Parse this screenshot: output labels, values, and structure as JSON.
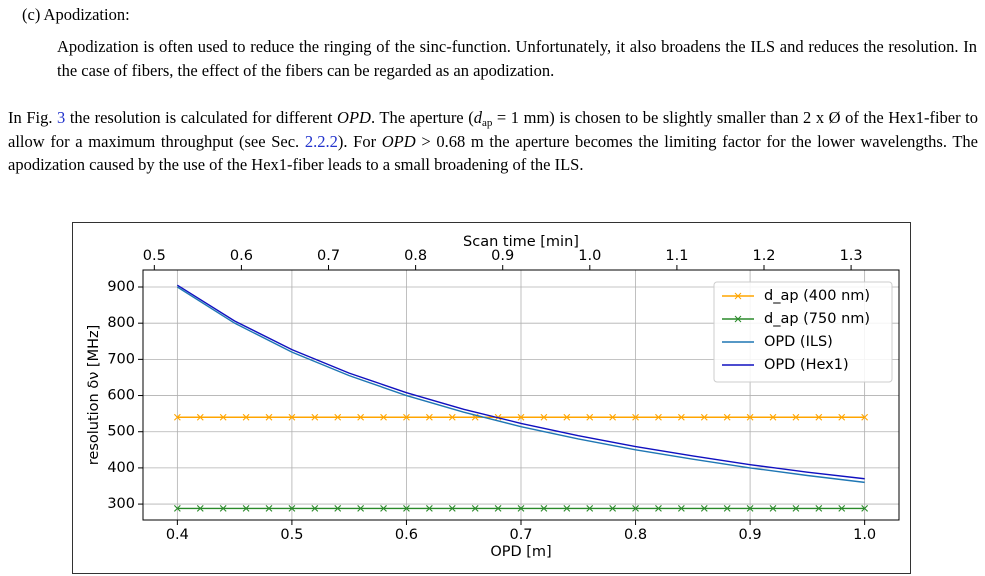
{
  "heading": "(c) Apodization:",
  "paragraphs": [
    {
      "parts": [
        "Apodization is often used to reduce the ringing of the sinc-function. Unfortunately, it also broadens the ILS and reduces the resolution. In the case of fibers, the effect of the fibers can be regarded as an apodization."
      ]
    },
    {
      "parts": [
        "In Fig. ",
        "3",
        " the resolution is calculated for different ",
        "OPD",
        ". The aperture (",
        "d",
        "ap",
        " = 1 mm) is chosen to be slightly smaller than 2 x Ø of the Hex1-fiber to allow for a maximum throughput (see Sec. ",
        "2.2.2",
        "). For ",
        "OPD",
        " > 0.68 m the aperture becomes the limiting factor for the lower wavelengths. The apodization caused by the use of the Hex1-fiber leads to a small broadening of the ILS."
      ]
    }
  ],
  "chart_data": {
    "type": "line",
    "x_label": "OPD [m]",
    "y_label": "resolution δν [MHz]",
    "x2_label": "Scan time [min]",
    "xlim": [
      0.37,
      1.03
    ],
    "xticks": [
      0.4,
      0.5,
      0.6,
      0.7,
      0.8,
      0.9,
      {
        "value": 1.0,
        "label": "1.0"
      }
    ],
    "x2lim": [
      0.487,
      1.355
    ],
    "x2ticks": [
      0.5,
      0.6,
      0.7,
      0.8,
      0.9,
      {
        "value": 1.0,
        "label": "1.0"
      },
      1.1,
      1.2,
      1.3
    ],
    "ylim": [
      256,
      947
    ],
    "yticks": [
      300,
      400,
      500,
      600,
      700,
      800,
      900
    ],
    "grid": true,
    "legend": "upper right",
    "series": [
      {
        "name": "d_ap (400 nm)",
        "color": "#ffa500",
        "marker": "x",
        "x": [
          0.4,
          0.42,
          0.44,
          0.46,
          0.48,
          0.5,
          0.52,
          0.54,
          0.56,
          0.58,
          0.6,
          0.62,
          0.64,
          0.66,
          0.68,
          0.7,
          0.72,
          0.74,
          0.76,
          0.78,
          0.8,
          0.82,
          0.84,
          0.86,
          0.88,
          0.9,
          0.92,
          0.94,
          0.96,
          0.98,
          1.0
        ],
        "values": [
          540,
          540,
          540,
          540,
          540,
          540,
          540,
          540,
          540,
          540,
          540,
          540,
          540,
          540,
          540,
          540,
          540,
          540,
          540,
          540,
          540,
          540,
          540,
          540,
          540,
          540,
          540,
          540,
          540,
          540,
          540
        ]
      },
      {
        "name": "d_ap (750 nm)",
        "color": "#2a8a2a",
        "marker": "x",
        "x": [
          0.4,
          0.42,
          0.44,
          0.46,
          0.48,
          0.5,
          0.52,
          0.54,
          0.56,
          0.58,
          0.6,
          0.62,
          0.64,
          0.66,
          0.68,
          0.7,
          0.72,
          0.74,
          0.76,
          0.78,
          0.8,
          0.82,
          0.84,
          0.86,
          0.88,
          0.9,
          0.92,
          0.94,
          0.96,
          0.98,
          1.0
        ],
        "values": [
          288,
          288,
          288,
          288,
          288,
          288,
          288,
          288,
          288,
          288,
          288,
          288,
          288,
          288,
          288,
          288,
          288,
          288,
          288,
          288,
          288,
          288,
          288,
          288,
          288,
          288,
          288,
          288,
          288,
          288,
          288
        ]
      },
      {
        "name": "OPD (ILS)",
        "color": "#1f77b4",
        "x": [
          0.4,
          0.45,
          0.5,
          0.55,
          0.6,
          0.65,
          0.7,
          0.75,
          0.8,
          0.85,
          0.9,
          0.95,
          1.0
        ],
        "values": [
          900,
          800,
          720,
          655,
          600,
          554,
          514,
          480,
          450,
          424,
          400,
          379,
          360
        ]
      },
      {
        "name": "OPD (Hex1)",
        "color": "#1010c0",
        "x": [
          0.4,
          0.45,
          0.5,
          0.55,
          0.6,
          0.65,
          0.7,
          0.75,
          0.8,
          0.85,
          0.9,
          0.95,
          1.0
        ],
        "values": [
          905,
          806,
          727,
          662,
          608,
          562,
          523,
          489,
          459,
          433,
          409,
          388,
          370
        ]
      }
    ]
  }
}
